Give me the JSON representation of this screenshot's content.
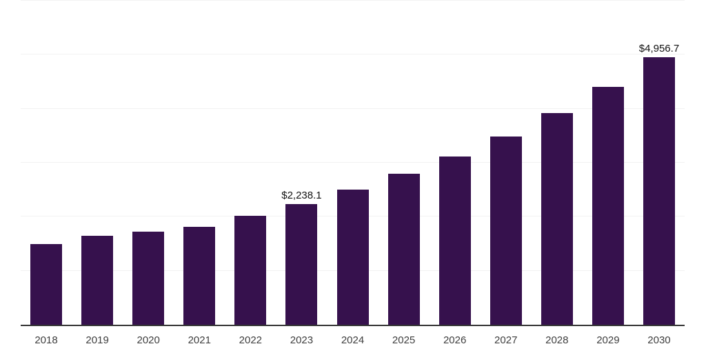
{
  "chart": {
    "background_color": "#ffffff",
    "bar_color": "#36114d",
    "gridline_color": "#f2f2f2",
    "axis_line_color": "#333333",
    "data_label_color": "#111111",
    "tick_label_color": "#3d3d3d"
  },
  "chart_data": {
    "type": "bar",
    "title": "",
    "xlabel": "",
    "ylabel": "",
    "categories": [
      "2018",
      "2019",
      "2020",
      "2021",
      "2022",
      "2023",
      "2024",
      "2025",
      "2026",
      "2027",
      "2028",
      "2029",
      "2030"
    ],
    "values": [
      1500,
      1645,
      1725,
      1815,
      2015,
      2238.1,
      2500,
      2790,
      3110,
      3490,
      3925,
      4400,
      4956.7
    ],
    "data_labels": [
      "",
      "",
      "",
      "",
      "",
      "$2,238.1",
      "",
      "",
      "",
      "",
      "",
      "",
      "$4,956.7"
    ],
    "ylim": [
      0,
      6000
    ],
    "grid_step": 1000,
    "gridlines_visible": true,
    "y_axis_tick_labels_visible": false,
    "legend": "none"
  }
}
